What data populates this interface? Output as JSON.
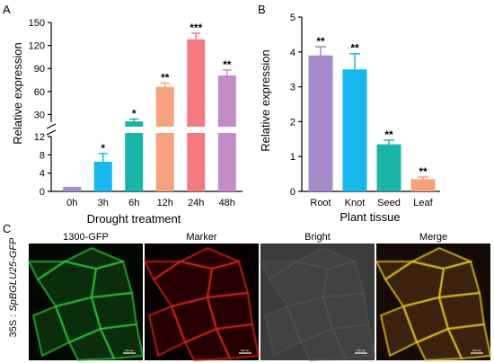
{
  "chart_data": [
    {
      "panel": "A",
      "type": "bar",
      "categories": [
        "0h",
        "3h",
        "6h",
        "12h",
        "24h",
        "48h"
      ],
      "values": [
        1.0,
        6.5,
        21,
        66,
        128,
        81
      ],
      "errors": [
        0.1,
        1.8,
        3,
        5,
        8,
        7
      ],
      "significance": [
        "",
        "*",
        "*",
        "**",
        "***",
        "**"
      ],
      "colors": [
        "#a58bc9",
        "#1ab6ee",
        "#1ab4a8",
        "#f7a27e",
        "#f47a82",
        "#c48cc6"
      ],
      "xlabel": "Drought treatment",
      "ylabel": "Relative expression",
      "y_break": true,
      "yticks_lower": [
        0,
        4,
        8,
        12
      ],
      "yticks_upper": [
        30,
        60,
        90,
        120,
        150
      ],
      "ylim": [
        0,
        150
      ]
    },
    {
      "panel": "B",
      "type": "bar",
      "categories": [
        "Root",
        "Knot",
        "Seed",
        "Leaf"
      ],
      "values": [
        3.9,
        3.5,
        1.35,
        0.35
      ],
      "errors": [
        0.25,
        0.45,
        0.12,
        0.06
      ],
      "significance": [
        "**",
        "**",
        "**",
        "**"
      ],
      "colors": [
        "#a58bc9",
        "#1ab6ee",
        "#1ab4a8",
        "#f7a27e"
      ],
      "xlabel": "Plant tissue",
      "ylabel": "Relative expression",
      "yticks": [
        0,
        1,
        2,
        3,
        4,
        5
      ],
      "ylim": [
        0,
        5
      ]
    }
  ],
  "panel_c": {
    "letter": "C",
    "row_label_prefix": "35S : ",
    "row_label_gene": "SpBGLU25-GFP",
    "images": [
      {
        "title": "1300-GFP",
        "scale": "100 µm",
        "tone": "green"
      },
      {
        "title": "Marker",
        "scale": "100 µm",
        "tone": "red"
      },
      {
        "title": "Bright",
        "scale": "100 µm",
        "tone": "gray"
      },
      {
        "title": "Merge",
        "scale": "100 µm",
        "tone": "merge"
      }
    ]
  }
}
